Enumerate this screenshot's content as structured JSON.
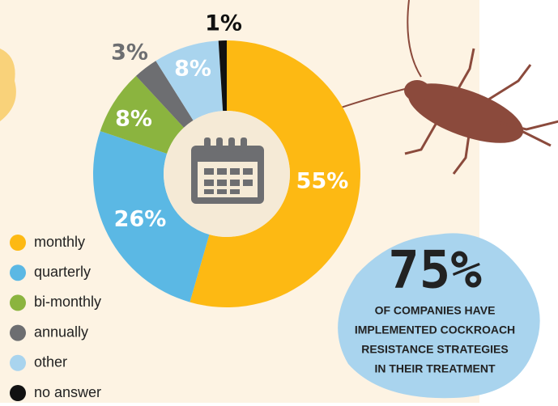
{
  "chart_data": {
    "type": "donut",
    "categories": [
      "monthly",
      "quarterly",
      "bi-monthly",
      "annually",
      "other",
      "no answer"
    ],
    "values": [
      55,
      26,
      8,
      3,
      8,
      1
    ],
    "value_labels": [
      "55%",
      "26%",
      "8%",
      "3%",
      "8%",
      "1%"
    ],
    "colors": [
      "#fdb913",
      "#5bb8e4",
      "#8bb43f",
      "#6d6e71",
      "#a9d4ee",
      "#111111"
    ]
  },
  "callout": {
    "stat": "75%",
    "lines": [
      "OF COMPANIES HAVE",
      "IMPLEMENTED COCKROACH",
      "RESISTANCE STRATEGIES",
      "IN THEIR TREATMENT"
    ]
  }
}
